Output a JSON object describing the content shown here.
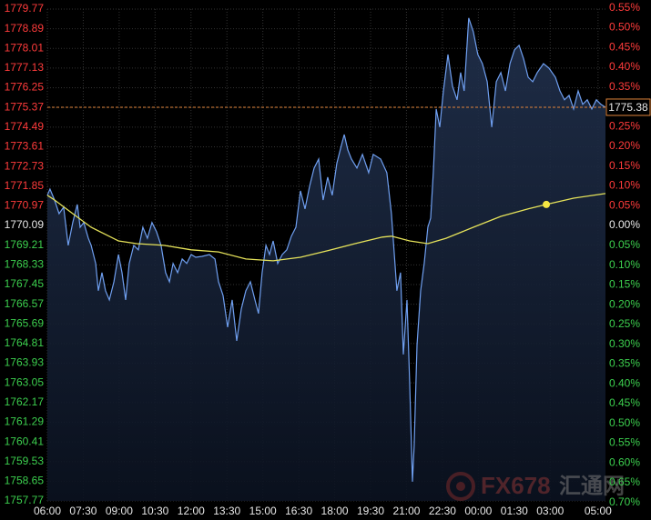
{
  "chart_data": {
    "type": "line",
    "ylim": [
      1757.77,
      1779.77
    ],
    "yticks": [
      1779.77,
      1778.89,
      1778.01,
      1777.13,
      1776.25,
      1775.37,
      1774.49,
      1773.61,
      1772.73,
      1771.85,
      1770.97,
      1770.09,
      1769.21,
      1768.33,
      1767.45,
      1766.57,
      1765.69,
      1764.81,
      1763.93,
      1763.05,
      1762.17,
      1761.29,
      1760.41,
      1759.53,
      1758.65,
      1757.77
    ],
    "y2lim": [
      -0.696,
      0.547
    ],
    "y2ticks": [
      {
        "value": 0.55,
        "label": "0.55%"
      },
      {
        "value": 0.5,
        "label": "0.50%"
      },
      {
        "value": 0.45,
        "label": "0.45%"
      },
      {
        "value": 0.4,
        "label": "0.40%"
      },
      {
        "value": 0.35,
        "label": "0.35%"
      },
      {
        "value": 0.3,
        "label": "0.30%"
      },
      {
        "value": 0.25,
        "label": "0.25%"
      },
      {
        "value": 0.2,
        "label": "0.20%"
      },
      {
        "value": 0.15,
        "label": "0.15%"
      },
      {
        "value": 0.1,
        "label": "0.10%"
      },
      {
        "value": 0.05,
        "label": "0.05%"
      },
      {
        "value": 0,
        "label": "0.00%"
      },
      {
        "value": -0.05,
        "label": "0.05%"
      },
      {
        "value": -0.1,
        "label": "0.10%"
      },
      {
        "value": -0.15,
        "label": "0.15%"
      },
      {
        "value": -0.2,
        "label": "0.20%"
      },
      {
        "value": -0.25,
        "label": "0.25%"
      },
      {
        "value": -0.3,
        "label": "0.30%"
      },
      {
        "value": -0.35,
        "label": "0.35%"
      },
      {
        "value": -0.4,
        "label": "0.40%"
      },
      {
        "value": -0.45,
        "label": "0.45%"
      },
      {
        "value": -0.5,
        "label": "0.50%"
      },
      {
        "value": -0.55,
        "label": "0.55%"
      },
      {
        "value": -0.6,
        "label": "0.60%"
      },
      {
        "value": -0.65,
        "label": "0.65%"
      },
      {
        "value": -0.7,
        "label": "0.70%"
      }
    ],
    "xlim": [
      0,
      23.31
    ],
    "xticks": [
      {
        "value": 0,
        "label": "06:00"
      },
      {
        "value": 1.5,
        "label": "07:30"
      },
      {
        "value": 3,
        "label": "09:00"
      },
      {
        "value": 4.5,
        "label": "10:30"
      },
      {
        "value": 6,
        "label": "12:00"
      },
      {
        "value": 7.5,
        "label": "13:30"
      },
      {
        "value": 9,
        "label": "15:00"
      },
      {
        "value": 10.5,
        "label": "16:30"
      },
      {
        "value": 12,
        "label": "18:00"
      },
      {
        "value": 13.5,
        "label": "19:30"
      },
      {
        "value": 15,
        "label": "21:00"
      },
      {
        "value": 16.5,
        "label": "22:30"
      },
      {
        "value": 18,
        "label": "00:00"
      },
      {
        "value": 19.5,
        "label": "01:30"
      },
      {
        "value": 21,
        "label": "03:00"
      },
      {
        "value": 23,
        "label": "05:00"
      }
    ],
    "grid": true,
    "series": [
      {
        "color": "#6f9ff0",
        "x": [
          0,
          0.11,
          0.3,
          0.49,
          0.68,
          0.87,
          1.06,
          1.25,
          1.37,
          1.52,
          1.71,
          1.83,
          2.02,
          2.13,
          2.28,
          2.43,
          2.59,
          2.78,
          2.97,
          3.12,
          3.27,
          3.42,
          3.61,
          3.8,
          3.99,
          4.18,
          4.37,
          4.56,
          4.75,
          4.94,
          5.1,
          5.25,
          5.44,
          5.63,
          5.82,
          6.01,
          6.2,
          6.46,
          6.77,
          7,
          7.15,
          7.34,
          7.53,
          7.72,
          7.91,
          8.1,
          8.29,
          8.48,
          8.67,
          8.82,
          8.97,
          9.13,
          9.28,
          9.43,
          9.62,
          9.81,
          10,
          10.19,
          10.38,
          10.57,
          10.76,
          10.95,
          11.14,
          11.33,
          11.52,
          11.71,
          11.9,
          12.09,
          12.28,
          12.4,
          12.55,
          12.7,
          12.93,
          13.16,
          13.42,
          13.61,
          13.92,
          14.18,
          14.37,
          14.49,
          14.6,
          14.75,
          14.87,
          15.02,
          15.13,
          15.25,
          15.32,
          15.44,
          15.59,
          15.74,
          15.89,
          16.01,
          16.12,
          16.24,
          16.39,
          16.54,
          16.73,
          16.92,
          17.11,
          17.26,
          17.41,
          17.6,
          17.79,
          17.98,
          18.17,
          18.37,
          18.56,
          18.75,
          18.94,
          19.13,
          19.32,
          19.51,
          19.7,
          19.89,
          20.08,
          20.27,
          20.46,
          20.72,
          20.95,
          21.22,
          21.41,
          21.6,
          21.79,
          21.98,
          22.17,
          22.36,
          22.55,
          22.74,
          22.93,
          23.12,
          23.31
        ],
        "values": [
          1771.44,
          1771.72,
          1771.23,
          1770.62,
          1770.91,
          1769.2,
          1770.22,
          1771.03,
          1770.01,
          1770.22,
          1769.52,
          1769.2,
          1768.39,
          1767.17,
          1767.98,
          1767.17,
          1766.76,
          1767.57,
          1768.79,
          1767.98,
          1766.76,
          1768.39,
          1769.2,
          1769,
          1770.01,
          1769.52,
          1770.22,
          1769.81,
          1769.2,
          1767.98,
          1767.57,
          1768.39,
          1767.98,
          1768.59,
          1768.39,
          1768.79,
          1768.67,
          1768.71,
          1768.79,
          1768.59,
          1767.57,
          1766.96,
          1765.54,
          1766.76,
          1764.93,
          1766.35,
          1767.17,
          1767.57,
          1766.76,
          1766.15,
          1767.98,
          1769.2,
          1768.79,
          1769.4,
          1768.39,
          1768.79,
          1769,
          1769.61,
          1770.01,
          1771.64,
          1770.83,
          1771.84,
          1772.66,
          1773.06,
          1771.23,
          1772.25,
          1771.44,
          1772.86,
          1773.67,
          1774.16,
          1773.47,
          1773.06,
          1772.66,
          1773.27,
          1772.45,
          1773.27,
          1773.06,
          1772.45,
          1770.62,
          1768.79,
          1767.17,
          1767.98,
          1764.32,
          1766.76,
          1763.1,
          1758.63,
          1760.25,
          1764.73,
          1767.17,
          1768.39,
          1770.01,
          1770.42,
          1772.45,
          1775.3,
          1774.49,
          1776.11,
          1777.74,
          1776.32,
          1775.71,
          1776.93,
          1776.11,
          1779.37,
          1778.76,
          1777.74,
          1777.33,
          1776.52,
          1774.49,
          1776.52,
          1776.93,
          1776.11,
          1777.33,
          1777.95,
          1778.15,
          1777.54,
          1776.72,
          1776.52,
          1776.93,
          1777.33,
          1777.13,
          1776.72,
          1776.11,
          1775.71,
          1775.91,
          1775.3,
          1776.11,
          1775.51,
          1775.71,
          1775.3,
          1775.71,
          1775.51,
          1775.38
        ]
      },
      {
        "color": "#e6e35a",
        "x": [
          0,
          0.3,
          1.06,
          1.83,
          2.97,
          3.73,
          4.87,
          6.01,
          7.15,
          8.29,
          9.43,
          10.57,
          11.71,
          12.85,
          13.99,
          14.37,
          15.13,
          15.89,
          16.65,
          17.79,
          18.94,
          20.08,
          20.84,
          21.98,
          23.31
        ],
        "values": [
          1771.44,
          1771.23,
          1770.62,
          1770.01,
          1769.4,
          1769.28,
          1769.2,
          1769,
          1768.91,
          1768.59,
          1768.51,
          1768.67,
          1768.96,
          1769.28,
          1769.57,
          1769.61,
          1769.4,
          1769.28,
          1769.52,
          1770.01,
          1770.5,
          1770.83,
          1771.03,
          1771.31,
          1771.52
        ]
      }
    ],
    "marker": {
      "x": 20.84,
      "value": 1771.03,
      "color": "#f5e642"
    },
    "last_price": 1775.38,
    "watermark": {
      "brand": "FX678",
      "site": "汇通网"
    }
  }
}
